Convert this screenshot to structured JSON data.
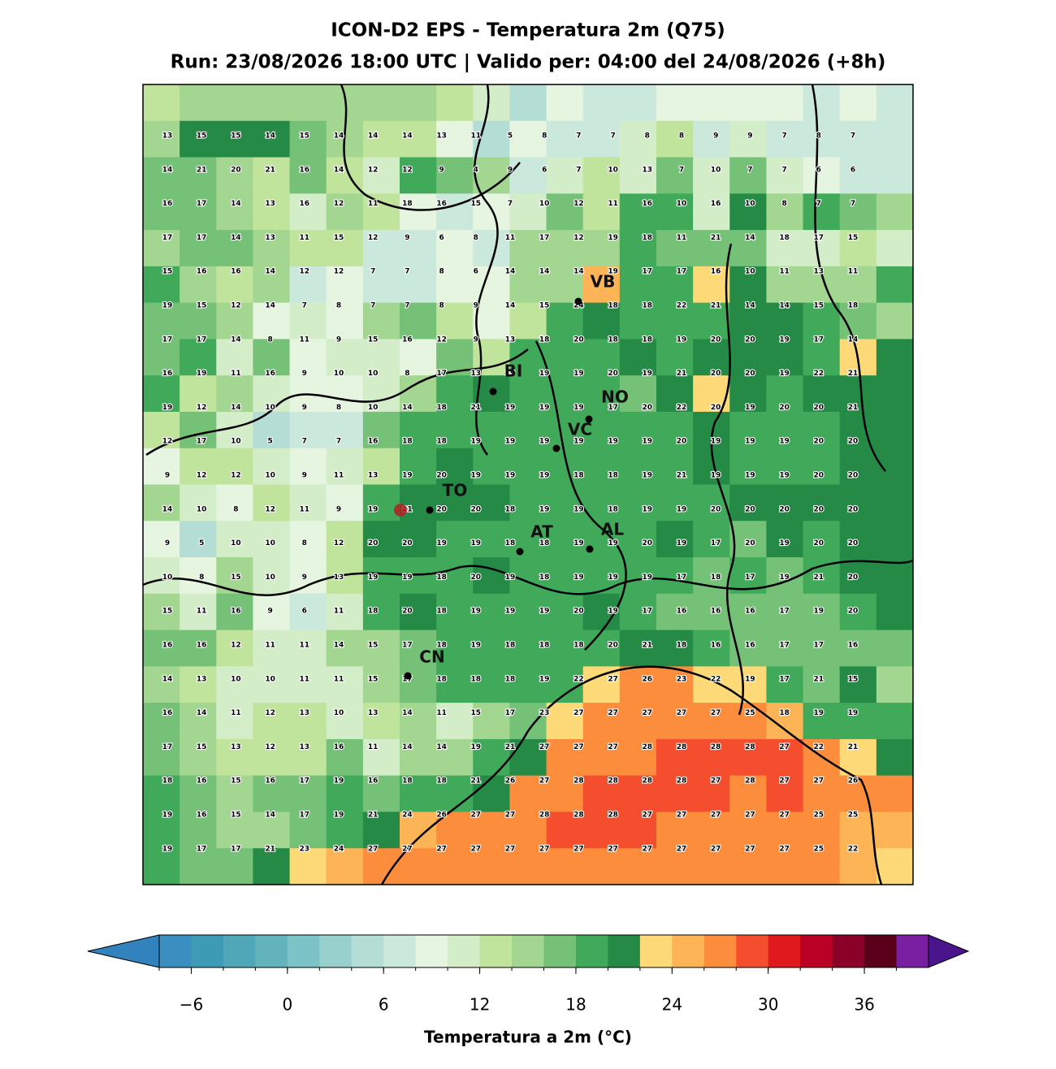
{
  "title": "ICON-D2 EPS - Temperatura 2m (Q75)",
  "subtitle": "Run: 23/08/2026 18:00 UTC | Valido per: 04:00 del 24/08/2026 (+8h)",
  "grid": {
    "rows": [
      [
        13,
        15,
        15,
        14,
        15,
        14,
        14,
        14,
        13,
        11,
        5,
        8,
        7,
        7,
        8,
        8,
        9,
        9,
        7,
        8,
        7
      ],
      [
        14,
        21,
        20,
        21,
        16,
        14,
        12,
        12,
        9,
        4,
        9,
        6,
        7,
        10,
        13,
        7,
        10,
        7,
        7,
        6,
        6
      ],
      [
        16,
        17,
        14,
        13,
        16,
        12,
        11,
        18,
        16,
        15,
        7,
        10,
        12,
        11,
        16,
        10,
        16,
        10,
        8,
        7,
        7
      ],
      [
        17,
        17,
        14,
        13,
        11,
        15,
        12,
        9,
        6,
        8,
        11,
        17,
        12,
        19,
        18,
        11,
        21,
        14,
        18,
        17,
        15
      ],
      [
        15,
        16,
        16,
        14,
        12,
        12,
        7,
        7,
        8,
        6,
        14,
        14,
        14,
        19,
        17,
        17,
        16,
        10,
        11,
        13,
        11
      ],
      [
        19,
        15,
        12,
        14,
        7,
        8,
        7,
        7,
        8,
        9,
        14,
        15,
        24,
        18,
        18,
        22,
        21,
        14,
        14,
        15,
        18
      ],
      [
        17,
        17,
        14,
        8,
        11,
        9,
        15,
        16,
        12,
        9,
        13,
        18,
        20,
        18,
        18,
        19,
        20,
        20,
        19,
        17,
        14
      ],
      [
        16,
        19,
        11,
        16,
        9,
        10,
        10,
        8,
        17,
        13,
        19,
        19,
        19,
        20,
        19,
        21,
        20,
        20,
        19,
        22,
        21
      ],
      [
        19,
        12,
        14,
        10,
        9,
        8,
        10,
        14,
        18,
        21,
        19,
        19,
        19,
        17,
        20,
        22,
        20,
        19,
        20,
        20,
        21
      ],
      [
        12,
        17,
        10,
        5,
        7,
        7,
        16,
        18,
        18,
        19,
        19,
        19,
        19,
        19,
        19,
        20,
        19,
        19,
        19,
        20,
        20
      ],
      [
        9,
        12,
        12,
        10,
        9,
        11,
        13,
        19,
        20,
        19,
        19,
        19,
        18,
        18,
        19,
        21,
        19,
        19,
        19,
        20,
        20
      ],
      [
        14,
        10,
        8,
        12,
        11,
        9,
        19,
        21,
        20,
        20,
        18,
        19,
        19,
        18,
        19,
        19,
        20,
        20,
        20,
        20,
        20
      ],
      [
        9,
        5,
        10,
        10,
        8,
        12,
        20,
        20,
        19,
        19,
        18,
        18,
        19,
        19,
        20,
        19,
        17,
        20,
        19,
        20,
        20
      ],
      [
        10,
        8,
        15,
        10,
        9,
        13,
        19,
        19,
        18,
        20,
        19,
        18,
        19,
        19,
        19,
        17,
        18,
        17,
        19,
        21,
        20
      ],
      [
        15,
        11,
        16,
        9,
        6,
        11,
        18,
        20,
        18,
        19,
        19,
        19,
        20,
        19,
        17,
        16,
        16,
        16,
        17,
        19,
        20
      ],
      [
        16,
        16,
        12,
        11,
        11,
        14,
        15,
        17,
        18,
        19,
        18,
        18,
        18,
        20,
        21,
        18,
        16,
        16,
        17,
        17,
        16
      ],
      [
        14,
        13,
        10,
        10,
        11,
        11,
        15,
        17,
        18,
        18,
        18,
        19,
        22,
        27,
        26,
        23,
        22,
        19,
        17,
        21,
        15
      ],
      [
        16,
        14,
        11,
        12,
        13,
        10,
        13,
        14,
        11,
        15,
        17,
        23,
        27,
        27,
        27,
        27,
        27,
        25,
        18,
        19,
        19
      ],
      [
        17,
        15,
        13,
        12,
        13,
        16,
        11,
        14,
        14,
        19,
        21,
        27,
        27,
        27,
        28,
        28,
        28,
        28,
        27,
        22,
        21
      ],
      [
        18,
        16,
        15,
        16,
        17,
        19,
        16,
        18,
        18,
        21,
        26,
        27,
        28,
        28,
        28,
        28,
        27,
        28,
        27,
        27,
        26
      ],
      [
        19,
        16,
        15,
        14,
        17,
        19,
        21,
        24,
        26,
        27,
        27,
        28,
        28,
        28,
        27,
        27,
        27,
        27,
        27,
        25,
        25
      ],
      [
        19,
        17,
        17,
        21,
        23,
        24,
        27,
        27,
        27,
        27,
        27,
        27,
        27,
        27,
        27,
        27,
        27,
        27,
        27,
        25,
        22
      ]
    ]
  },
  "cities": [
    "BI",
    "NO",
    "VC",
    "TO",
    "AT",
    "AL",
    "VB",
    "CN"
  ],
  "colorbar": {
    "label": "Temperatura a 2m (°C)",
    "lim": [
      -8,
      40
    ],
    "ticks": [
      {
        "value": -6,
        "label": "−6"
      },
      0,
      6,
      12,
      18,
      24,
      30,
      36
    ],
    "colors": [
      "#3a8fc0",
      "#3d9bb6",
      "#4fa7b8",
      "#63b3bd",
      "#7bc3c6",
      "#98d0cd",
      "#b3ddd5",
      "#cbe8dc",
      "#e5f5df",
      "#d3edc9",
      "#c0e49c",
      "#a3d690",
      "#74c177",
      "#41a95a",
      "#248a45",
      "#fed977",
      "#fdb456",
      "#fc8d3c",
      "#f54e2e",
      "#e0191d",
      "#bb0025",
      "#8a0026",
      "#5a001a",
      "#7b1fa2"
    ],
    "under": "#3182bd",
    "over": "#4a148c"
  }
}
